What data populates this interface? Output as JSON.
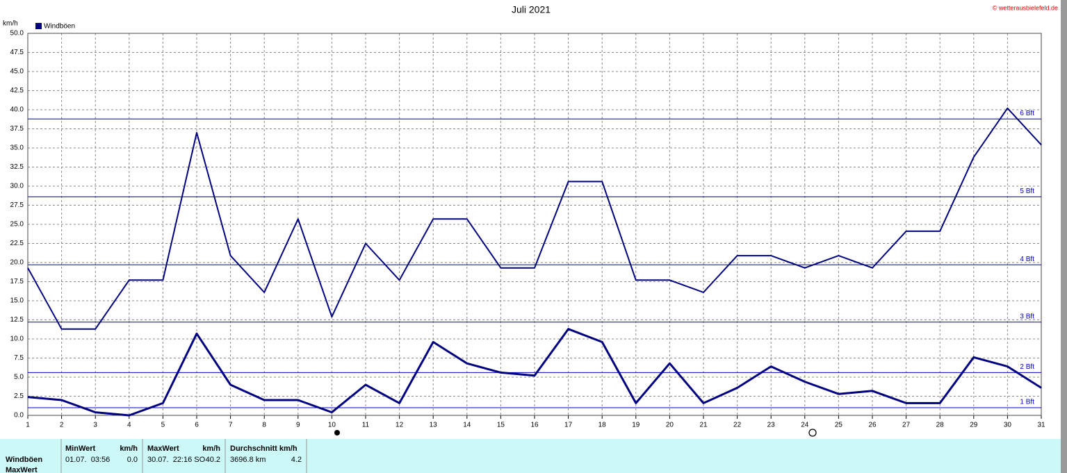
{
  "chart_data": {
    "type": "line",
    "title": "Juli 2021",
    "y_label": "km/h",
    "source": "© wetterausbielefeld.de",
    "x": [
      1,
      2,
      3,
      4,
      5,
      6,
      7,
      8,
      9,
      10,
      11,
      12,
      13,
      14,
      15,
      16,
      17,
      18,
      19,
      20,
      21,
      22,
      23,
      24,
      25,
      26,
      27,
      28,
      29,
      30,
      31
    ],
    "xlim": [
      1,
      31
    ],
    "xticks": [
      1,
      2,
      3,
      4,
      5,
      6,
      7,
      8,
      9,
      10,
      11,
      12,
      13,
      14,
      15,
      16,
      17,
      18,
      19,
      20,
      21,
      22,
      23,
      24,
      25,
      26,
      27,
      28,
      29,
      30,
      31
    ],
    "ylim": [
      0,
      50
    ],
    "yticks": [
      {
        "value": 0,
        "label": "0.0"
      },
      2.5,
      {
        "value": 5,
        "label": "5.0"
      },
      7.5,
      {
        "value": 10,
        "label": "10.0"
      },
      12.5,
      {
        "value": 15,
        "label": "15.0"
      },
      17.5,
      {
        "value": 20,
        "label": "20.0"
      },
      22.5,
      {
        "value": 25,
        "label": "25.0"
      },
      27.5,
      {
        "value": 30,
        "label": "30.0"
      },
      32.5,
      {
        "value": 35,
        "label": "35.0"
      },
      37.5,
      {
        "value": 40,
        "label": "40.0"
      },
      42.5,
      {
        "value": 45,
        "label": "45.0"
      },
      47.5,
      {
        "value": 50,
        "label": "50.0"
      }
    ],
    "grid": true,
    "legend": "top-left",
    "series": [
      {
        "name": "Windböen",
        "color": "#000080",
        "width": 3,
        "values": [
          2.4,
          2.0,
          0.4,
          0.0,
          1.6,
          10.7,
          4.0,
          2.0,
          2.0,
          0.4,
          4.0,
          1.6,
          9.6,
          6.8,
          5.6,
          5.2,
          11.3,
          9.6,
          1.6,
          6.8,
          1.6,
          3.6,
          6.4,
          4.4,
          2.8,
          3.2,
          1.6,
          1.6,
          7.6,
          6.4,
          3.6
        ]
      },
      {
        "color": "#000080",
        "width": 2,
        "values": [
          19.3,
          11.3,
          11.3,
          17.7,
          17.7,
          37.0,
          20.9,
          16.1,
          25.7,
          12.9,
          22.5,
          17.7,
          25.7,
          25.7,
          19.3,
          19.3,
          30.6,
          30.6,
          17.7,
          17.7,
          16.1,
          20.9,
          20.9,
          19.3,
          20.9,
          19.3,
          24.1,
          24.1,
          33.8,
          40.2,
          35.4
        ]
      }
    ],
    "bft_lines": [
      {
        "value": 1.0,
        "label": "1 Bft"
      },
      {
        "value": 5.6,
        "label": "2 Bft"
      },
      {
        "value": 12.2,
        "label": "3 Bft"
      },
      {
        "value": 19.7,
        "label": "4 Bft"
      },
      {
        "value": 28.6,
        "label": "5 Bft"
      },
      {
        "value": 38.8,
        "label": "6 Bft"
      }
    ],
    "bft_color": "#0000c0"
  },
  "stats_table": {
    "header": [
      "MinWert",
      "km/h",
      "MaxWert",
      "km/h",
      "Durchschnitt km/h"
    ],
    "rows": [
      [
        "Windböen",
        "01.07.  03:56",
        "0.0",
        "30.07.  22:16 SO",
        "40.2",
        "3696.8 km",
        "4.2"
      ],
      [
        "MaxWert"
      ]
    ]
  }
}
